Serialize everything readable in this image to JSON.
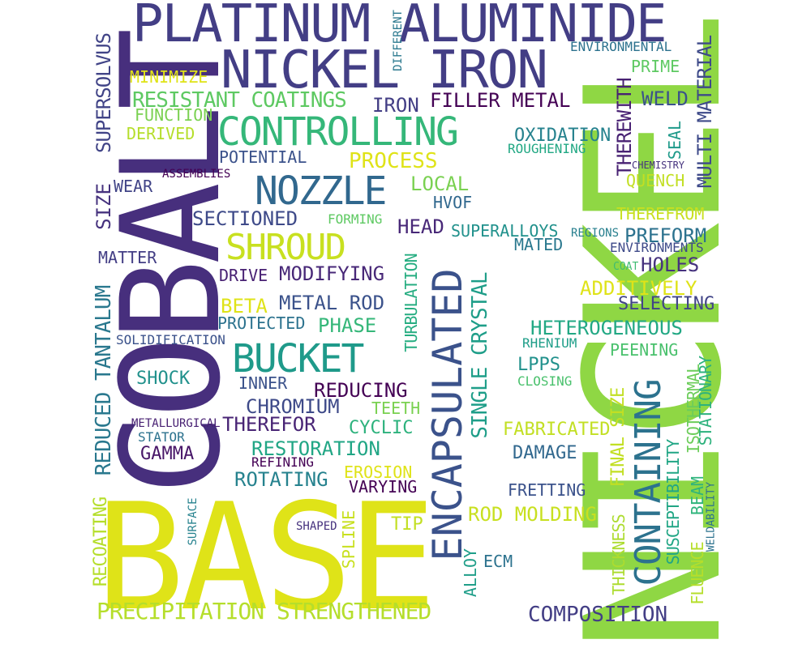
{
  "words": [
    {
      "text": "BASE",
      "color": "#dfe318"
    },
    {
      "text": "NICKEL",
      "color": "#8fd744"
    },
    {
      "text": "COBALT",
      "color": "#472f7d"
    },
    {
      "text": "PLATINUM ALUMINIDE",
      "color": "#433e85"
    },
    {
      "text": "NICKEL IRON",
      "color": "#433e85"
    },
    {
      "text": "ENCAPSULATED",
      "color": "#3b528b"
    },
    {
      "text": "CONTAINING",
      "color": "#2c728e"
    },
    {
      "text": "CONTROLLING",
      "color": "#35b779"
    },
    {
      "text": "NOZZLE",
      "color": "#31688e"
    },
    {
      "text": "SHROUD",
      "color": "#c8e020"
    },
    {
      "text": "BUCKET",
      "color": "#1f9a8a"
    },
    {
      "text": "PRECIPITATION STRENGTHENED",
      "color": "#b5de2b"
    },
    {
      "text": "RESISTANT COATINGS",
      "color": "#5ec962"
    },
    {
      "text": "SINGLE CRYSTAL",
      "color": "#1f9e89"
    },
    {
      "text": "REDUCED TANTALUM",
      "color": "#2a788e"
    },
    {
      "text": "SUPERSOLVUS",
      "color": "#414487"
    },
    {
      "text": "SIZE",
      "color": "#46327e"
    },
    {
      "text": "RECOATING",
      "color": "#b5de2b"
    },
    {
      "text": "MULTI MATERIAL",
      "color": "#3e4a89"
    },
    {
      "text": "THEREWITH",
      "color": "#482173"
    },
    {
      "text": "TURBULATION",
      "color": "#26ad81"
    },
    {
      "text": "FINAL SIZE",
      "color": "#c2df23"
    },
    {
      "text": "THICKNESS",
      "color": "#addc30"
    },
    {
      "text": "SUSCEPTIBILITY",
      "color": "#21a685"
    },
    {
      "text": "FLUENCE",
      "color": "#b5de2b"
    },
    {
      "text": "BEAM",
      "color": "#2fb47c"
    },
    {
      "text": "ISOTHERMAL",
      "color": "#6ccd5a"
    },
    {
      "text": "STATIONARY",
      "color": "#2db27d"
    },
    {
      "text": "WELDABILITY",
      "color": "#2c728e"
    },
    {
      "text": "ALLOY",
      "color": "#1f9e89"
    },
    {
      "text": "SPLINE",
      "color": "#c8e020"
    },
    {
      "text": "SURFACE",
      "color": "#26828e"
    },
    {
      "text": "DIFFERENT",
      "color": "#2a788e"
    },
    {
      "text": "SEAL",
      "color": "#1f9a8a"
    },
    {
      "text": "ENVIRONMENTAL",
      "color": "#2c728e"
    },
    {
      "text": "PRIME",
      "color": "#5ec962"
    },
    {
      "text": "WELD",
      "color": "#3b528b"
    },
    {
      "text": "MINIMIZE",
      "color": "#dfe318"
    },
    {
      "text": "FUNCTION",
      "color": "#7ad151"
    },
    {
      "text": "DERIVED",
      "color": "#b5de2b"
    },
    {
      "text": "IRON",
      "color": "#433e85"
    },
    {
      "text": "FILLER METAL",
      "color": "#440154"
    },
    {
      "text": "OXIDATION",
      "color": "#26828e"
    },
    {
      "text": "ROUGHENING",
      "color": "#22a884"
    },
    {
      "text": "POTENTIAL",
      "color": "#3b528b"
    },
    {
      "text": "PROCESS",
      "color": "#dfe318"
    },
    {
      "text": "CHEMISTRY",
      "color": "#46337e"
    },
    {
      "text": "QUENCH",
      "color": "#c2df23"
    },
    {
      "text": "ASSEMBLIES",
      "color": "#440154"
    },
    {
      "text": "WEAR",
      "color": "#414487"
    },
    {
      "text": "LOCAL",
      "color": "#7ad151"
    },
    {
      "text": "HVOF",
      "color": "#31688e"
    },
    {
      "text": "THEREFROM",
      "color": "#c8e020"
    },
    {
      "text": "SECTIONED",
      "color": "#3e4a89"
    },
    {
      "text": "FORMING",
      "color": "#5ec962"
    },
    {
      "text": "HEAD",
      "color": "#482878"
    },
    {
      "text": "SUPERALLOYS",
      "color": "#21918c"
    },
    {
      "text": "REGIONS",
      "color": "#277f8e"
    },
    {
      "text": "PREFORM",
      "color": "#2c728e"
    },
    {
      "text": "MATED",
      "color": "#2a788e"
    },
    {
      "text": "ENVIRONMENTS",
      "color": "#3e4a89"
    },
    {
      "text": "MATTER",
      "color": "#433e85"
    },
    {
      "text": "COAT",
      "color": "#3fbc73"
    },
    {
      "text": "HOLES",
      "color": "#46327e"
    },
    {
      "text": "DRIVE",
      "color": "#482173"
    },
    {
      "text": "MODIFYING",
      "color": "#482878"
    },
    {
      "text": "ADDITIVELY",
      "color": "#dfe318"
    },
    {
      "text": "BETA",
      "color": "#dfe318"
    },
    {
      "text": "METAL ROD",
      "color": "#3b528b"
    },
    {
      "text": "SELECTING",
      "color": "#414487"
    },
    {
      "text": "PROTECTED",
      "color": "#2c728e"
    },
    {
      "text": "PHASE",
      "color": "#35b779"
    },
    {
      "text": "HETEROGENEOUS",
      "color": "#22a884"
    },
    {
      "text": "SOLIDIFICATION",
      "color": "#3b528b"
    },
    {
      "text": "RHENIUM",
      "color": "#1f9e89"
    },
    {
      "text": "PEENING",
      "color": "#4ac16d"
    },
    {
      "text": "SHOCK",
      "color": "#21918c"
    },
    {
      "text": "INNER",
      "color": "#3b528b"
    },
    {
      "text": "LPPS",
      "color": "#21918c"
    },
    {
      "text": "REDUCING",
      "color": "#440154"
    },
    {
      "text": "CLOSING",
      "color": "#4ac16d"
    },
    {
      "text": "CHROMIUM",
      "color": "#3e4a89"
    },
    {
      "text": "TEETH",
      "color": "#7ad151"
    },
    {
      "text": "METALLURGICAL",
      "color": "#482173"
    },
    {
      "text": "THEREFOR",
      "color": "#482475"
    },
    {
      "text": "CYCLIC",
      "color": "#2db27d"
    },
    {
      "text": "FABRICATED",
      "color": "#c2df23"
    },
    {
      "text": "STATOR",
      "color": "#2c728e"
    },
    {
      "text": "RESTORATION",
      "color": "#21a685"
    },
    {
      "text": "GAMMA",
      "color": "#481668"
    },
    {
      "text": "DAMAGE",
      "color": "#31688e"
    },
    {
      "text": "REFINING",
      "color": "#440154"
    },
    {
      "text": "ROTATING",
      "color": "#26828e"
    },
    {
      "text": "EROSION",
      "color": "#dfe318"
    },
    {
      "text": "VARYING",
      "color": "#440154"
    },
    {
      "text": "FRETTING",
      "color": "#3b528b"
    },
    {
      "text": "ROD MOLDING",
      "color": "#c8e020"
    },
    {
      "text": "TIP",
      "color": "#c2df23"
    },
    {
      "text": "SHAPED",
      "color": "#46327e"
    },
    {
      "text": "ECM",
      "color": "#2c728e"
    },
    {
      "text": "COMPOSITION",
      "color": "#433e85"
    }
  ]
}
